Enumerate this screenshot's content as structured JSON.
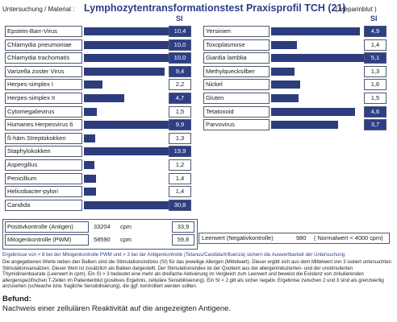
{
  "header": {
    "left": "Untersuchung / Material :",
    "title": "Lymphozytentransformationstest Praxisprofil TCH (21)",
    "right": "( Heparinblut )",
    "si_label": "SI"
  },
  "left_rows": [
    {
      "label": "Epstein-Barr-Virus",
      "value": "10,4",
      "bar": 10.4,
      "hi": true
    },
    {
      "label": "Chlamydia pneumoniae",
      "value": "10,0",
      "bar": 10.0,
      "hi": true
    },
    {
      "label": "Chlamydia trachomatis",
      "value": "10,0",
      "bar": 10.0,
      "hi": true
    },
    {
      "label": "Varizella zoster Virus",
      "value": "9,4",
      "bar": 9.4,
      "hi": true
    },
    {
      "label": "Herpes-simplex I",
      "value": "2,2",
      "bar": 2.2,
      "hi": false
    },
    {
      "label": "Herpes-simplex II",
      "value": "4,7",
      "bar": 4.7,
      "hi": true
    },
    {
      "label": "Cytomegalievirus",
      "value": "1,5",
      "bar": 1.5,
      "hi": false
    },
    {
      "label": "Humanes Herpesvirus 6",
      "value": "9,9",
      "bar": 9.9,
      "hi": true
    },
    {
      "label": "ß-häm.Streptokokken",
      "value": "1,3",
      "bar": 1.3,
      "hi": false
    },
    {
      "label": "Staphylokokken",
      "value": "19,9",
      "bar": 19.9,
      "hi": true
    },
    {
      "label": "Aspergillus",
      "value": "1,2",
      "bar": 1.2,
      "hi": false
    },
    {
      "label": "Penicillium",
      "value": "1,4",
      "bar": 1.4,
      "hi": false
    },
    {
      "label": "Helicobacter-pylori",
      "value": "1,4",
      "bar": 1.4,
      "hi": false
    },
    {
      "label": "Candida",
      "value": "30,8",
      "bar": 30.8,
      "hi": true
    }
  ],
  "right_rows": [
    {
      "label": "Yersinien",
      "value": "4,9",
      "bar": 4.9,
      "hi": true
    },
    {
      "label": "Toxoplasmose",
      "value": "1,4",
      "bar": 1.4,
      "hi": false
    },
    {
      "label": "Giardia lamblia",
      "value": "5,1",
      "bar": 5.1,
      "hi": true
    },
    {
      "label": "Methylquecksilber",
      "value": "1,3",
      "bar": 1.3,
      "hi": false
    },
    {
      "label": "Nickel",
      "value": "1,6",
      "bar": 1.6,
      "hi": false
    },
    {
      "label": "Gluten",
      "value": "1,5",
      "bar": 1.5,
      "hi": false
    },
    {
      "label": "Tetatoxoid",
      "value": "4,6",
      "bar": 4.6,
      "hi": true
    },
    {
      "label": "Parvovirus",
      "value": "3,7",
      "bar": 3.7,
      "hi": true
    }
  ],
  "controls": [
    {
      "label": "Positivkontrolle (Antigen)",
      "cpm_value": "33204",
      "unit": "cpm",
      "value": "33,9"
    },
    {
      "label": "Mitogenkontrolle (PWM)",
      "cpm_value": "58590",
      "unit": "cpm",
      "value": "59,8"
    }
  ],
  "leerwert": {
    "label": "Leerwert (Negativkontrolle)",
    "value": "980",
    "note": "( Normalwert < 4000 cpm)"
  },
  "note_line": "Ergebnisse von > 8 bei der Mitogenkontrolle PWM und > 3 bei der Antigenkontrolle (Tetanus/Candida/Influenza) sichern die Auswertbarkeit der Untersuchung",
  "paragraph": "Die angegebenen Werte neben den Balken sind die Stimulationsindizes (SI) für das jeweilige Allergen (Mittelwert). Dieser ergibt sich aus dem Mittelwert von 3 isoliert untersuchten Stimulationsansätzen. Dieser Wert ist zusätzlich als Balken dargestellt. Der Stimulationsindex ist der Quotient aus der allergeninduzierten- und der unstimulierten Thymidineinbaurate (Leerwert in cpm). Ein SI > 3 bedeutet eine mehr als dreifache Aktivierung im Vergleich zum Leerwert und beweist die Existenz von zirkulierenden allergenspezifischen T-Zellen im Patientenblut (positives Ergebnis, zelluläre Sensibilisierung). Ein SI < 2 gilt als sicher negativ. Ergebnise zwischen 2 und 3 sind als grenzwertig anzusehen (schwache bzw. fragliche Sensibilisierung), die ggf. kontrolliert werden sollten.",
  "befund": {
    "title": "Befund:",
    "text": "Nachweis einer zellulären Reaktivität auf die angezeigten Antigene."
  },
  "colors": {
    "bar": "#2d3d7c",
    "highlight": "#2e3f86",
    "title": "#2b3e87"
  }
}
